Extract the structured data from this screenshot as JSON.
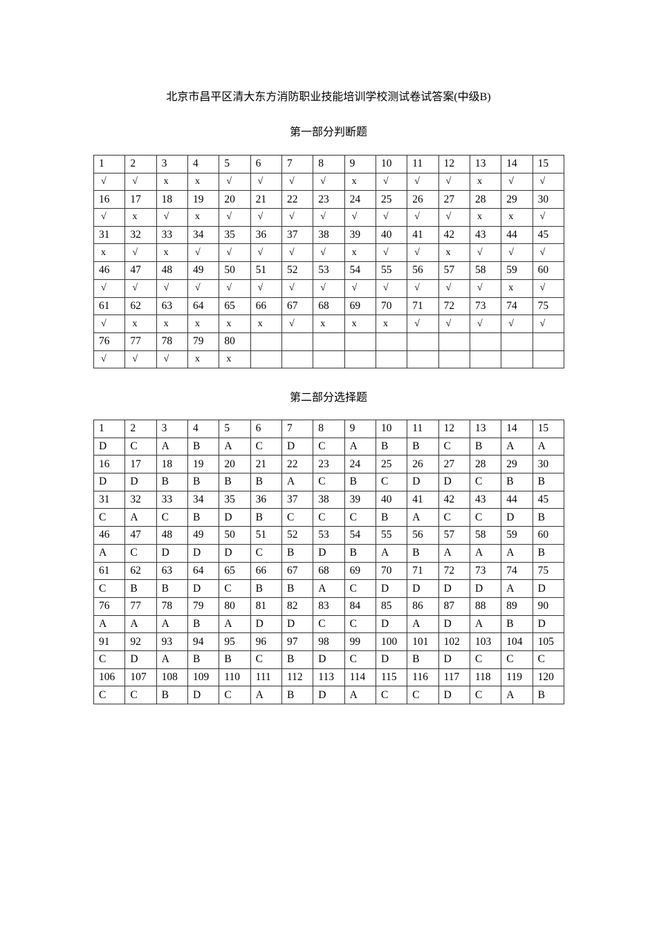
{
  "title": "北京市昌平区清大东方消防职业技能培训学校测试卷试答案(中级B)",
  "part1": {
    "heading": "第一部分判断题",
    "rows": [
      {
        "numbers": [
          "1",
          "2",
          "3",
          "4",
          "5",
          "6",
          "7",
          "8",
          "9",
          "10",
          "11",
          "12",
          "13",
          "14",
          "15"
        ],
        "answers": [
          "√",
          "√",
          "x",
          "x",
          "√",
          "√",
          "√",
          "√",
          "x",
          "√",
          "√",
          "√",
          "x",
          "√",
          "√"
        ]
      },
      {
        "numbers": [
          "16",
          "17",
          "18",
          "19",
          "20",
          "21",
          "22",
          "23",
          "24",
          "25",
          "26",
          "27",
          "28",
          "29",
          "30"
        ],
        "answers": [
          "√",
          "x",
          "√",
          "x",
          "√",
          "√",
          "√",
          "√",
          "√",
          "√",
          "√",
          "√",
          "x",
          "x",
          "√"
        ]
      },
      {
        "numbers": [
          "31",
          "32",
          "33",
          "34",
          "35",
          "36",
          "37",
          "38",
          "39",
          "40",
          "41",
          "42",
          "43",
          "44",
          "45"
        ],
        "answers": [
          "x",
          "√",
          "x",
          "√",
          "√",
          "√",
          "√",
          "√",
          "x",
          "√",
          "√",
          "x",
          "√",
          "√",
          "√"
        ]
      },
      {
        "numbers": [
          "46",
          "47",
          "48",
          "49",
          "50",
          "51",
          "52",
          "53",
          "54",
          "55",
          "56",
          "57",
          "58",
          "59",
          "60"
        ],
        "answers": [
          "√",
          "√",
          "√",
          "√",
          "√",
          "√",
          "√",
          "√",
          "√",
          "√",
          "√",
          "√",
          "√",
          "x",
          "√"
        ]
      },
      {
        "numbers": [
          "61",
          "62",
          "63",
          "64",
          "65",
          "66",
          "67",
          "68",
          "69",
          "70",
          "71",
          "72",
          "73",
          "74",
          "75"
        ],
        "answers": [
          "√",
          "x",
          "x",
          "x",
          "x",
          "x",
          "√",
          "x",
          "x",
          "x",
          "√",
          "√",
          "√",
          "√",
          "√"
        ]
      },
      {
        "numbers": [
          "76",
          "77",
          "78",
          "79",
          "80",
          "",
          "",
          "",
          "",
          "",
          "",
          "",
          "",
          "",
          ""
        ],
        "answers": [
          "√",
          "√",
          "√",
          "x",
          "x",
          "",
          "",
          "",
          "",
          "",
          "",
          "",
          "",
          "",
          ""
        ]
      }
    ]
  },
  "part2": {
    "heading": "第二部分选择题",
    "rows": [
      {
        "numbers": [
          "1",
          "2",
          "3",
          "4",
          "5",
          "6",
          "7",
          "8",
          "9",
          "10",
          "11",
          "12",
          "13",
          "14",
          "15"
        ],
        "answers": [
          "D",
          "C",
          "A",
          "B",
          "A",
          "C",
          "D",
          "C",
          "A",
          "B",
          "B",
          "C",
          "B",
          "A",
          "A"
        ]
      },
      {
        "numbers": [
          "16",
          "17",
          "18",
          "19",
          "20",
          "21",
          "22",
          "23",
          "24",
          "25",
          "26",
          "27",
          "28",
          "29",
          "30"
        ],
        "answers": [
          "D",
          "D",
          "B",
          "B",
          "B",
          "B",
          "A",
          "C",
          "B",
          "C",
          "D",
          "D",
          "C",
          "B",
          "B"
        ]
      },
      {
        "numbers": [
          "31",
          "32",
          "33",
          "34",
          "35",
          "36",
          "37",
          "38",
          "39",
          "40",
          "41",
          "42",
          "43",
          "44",
          "45"
        ],
        "answers": [
          "C",
          "A",
          "C",
          "B",
          "D",
          "B",
          "C",
          "C",
          "C",
          "B",
          "A",
          "C",
          "C",
          "D",
          "B"
        ]
      },
      {
        "numbers": [
          "46",
          "47",
          "48",
          "49",
          "50",
          "51",
          "52",
          "53",
          "54",
          "55",
          "56",
          "57",
          "58",
          "59",
          "60"
        ],
        "answers": [
          "A",
          "C",
          "D",
          "D",
          "D",
          "C",
          "B",
          "D",
          "B",
          "A",
          "B",
          "A",
          "A",
          "A",
          "B"
        ]
      },
      {
        "numbers": [
          "61",
          "62",
          "63",
          "64",
          "65",
          "66",
          "67",
          "68",
          "69",
          "70",
          "71",
          "72",
          "73",
          "74",
          "75"
        ],
        "answers": [
          "C",
          "B",
          "B",
          "D",
          "C",
          "B",
          "B",
          "A",
          "C",
          "D",
          "D",
          "D",
          "D",
          "A",
          "D"
        ]
      },
      {
        "numbers": [
          "76",
          "77",
          "78",
          "79",
          "80",
          "81",
          "82",
          "83",
          "84",
          "85",
          "86",
          "87",
          "88",
          "89",
          "90"
        ],
        "answers": [
          "A",
          "A",
          "A",
          "B",
          "A",
          "D",
          "D",
          "C",
          "C",
          "D",
          "A",
          "D",
          "A",
          "B",
          "D"
        ]
      },
      {
        "numbers": [
          "91",
          "92",
          "93",
          "94",
          "95",
          "96",
          "97",
          "98",
          "99",
          "100",
          "101",
          "102",
          "103",
          "104",
          "105"
        ],
        "answers": [
          "C",
          "D",
          "A",
          "B",
          "B",
          "C",
          "B",
          "D",
          "C",
          "D",
          "B",
          "D",
          "C",
          "C",
          "C"
        ]
      },
      {
        "numbers": [
          "106",
          "107",
          "108",
          "109",
          "110",
          "111",
          "112",
          "113",
          "114",
          "115",
          "116",
          "117",
          "118",
          "119",
          "120"
        ],
        "answers": [
          "C",
          "C",
          "B",
          "D",
          "C",
          "A",
          "B",
          "D",
          "A",
          "C",
          "C",
          "D",
          "C",
          "A",
          "B"
        ]
      }
    ]
  }
}
